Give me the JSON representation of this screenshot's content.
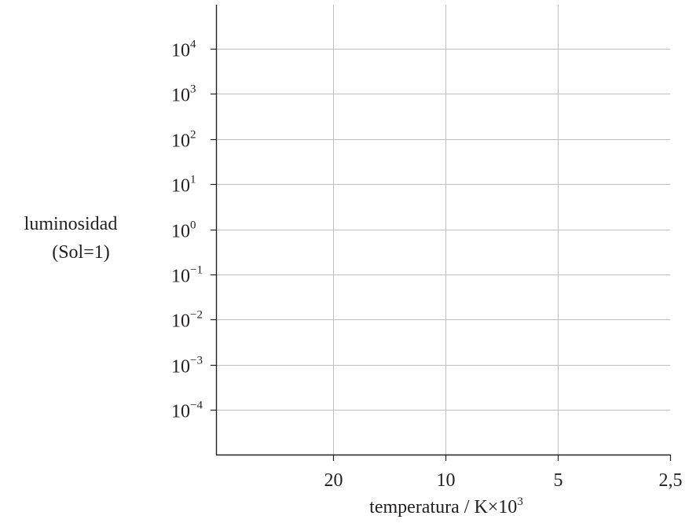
{
  "chart_data": {
    "type": "scatter",
    "series": [],
    "ylabel_line1": "luminosidad",
    "ylabel_line2": "(Sol=1)",
    "xlabel": {
      "text": "temperatura / K×10",
      "exponent": "3"
    },
    "x_scale": "log-reversed",
    "x_ticks": [
      {
        "value": 20,
        "label": "20"
      },
      {
        "value": 10,
        "label": "10"
      },
      {
        "value": 5,
        "label": "5"
      },
      {
        "value": 2.5,
        "label": "2,5"
      }
    ],
    "y_scale": "log",
    "y_ticks": [
      {
        "value": 10000,
        "base": "10",
        "exp": "4"
      },
      {
        "value": 1000,
        "base": "10",
        "exp": "3"
      },
      {
        "value": 100,
        "base": "10",
        "exp": "2"
      },
      {
        "value": 10,
        "base": "10",
        "exp": "1"
      },
      {
        "value": 1,
        "base": "10",
        "exp": "0"
      },
      {
        "value": 0.1,
        "base": "10",
        "exp": "−1"
      },
      {
        "value": 0.01,
        "base": "10",
        "exp": "−2"
      },
      {
        "value": 0.001,
        "base": "10",
        "exp": "−3"
      },
      {
        "value": 0.0001,
        "base": "10",
        "exp": "−4"
      }
    ],
    "grid": true,
    "colors": {
      "axis": "#231f20",
      "grid": "#bcbec0",
      "text": "#231f20"
    }
  }
}
